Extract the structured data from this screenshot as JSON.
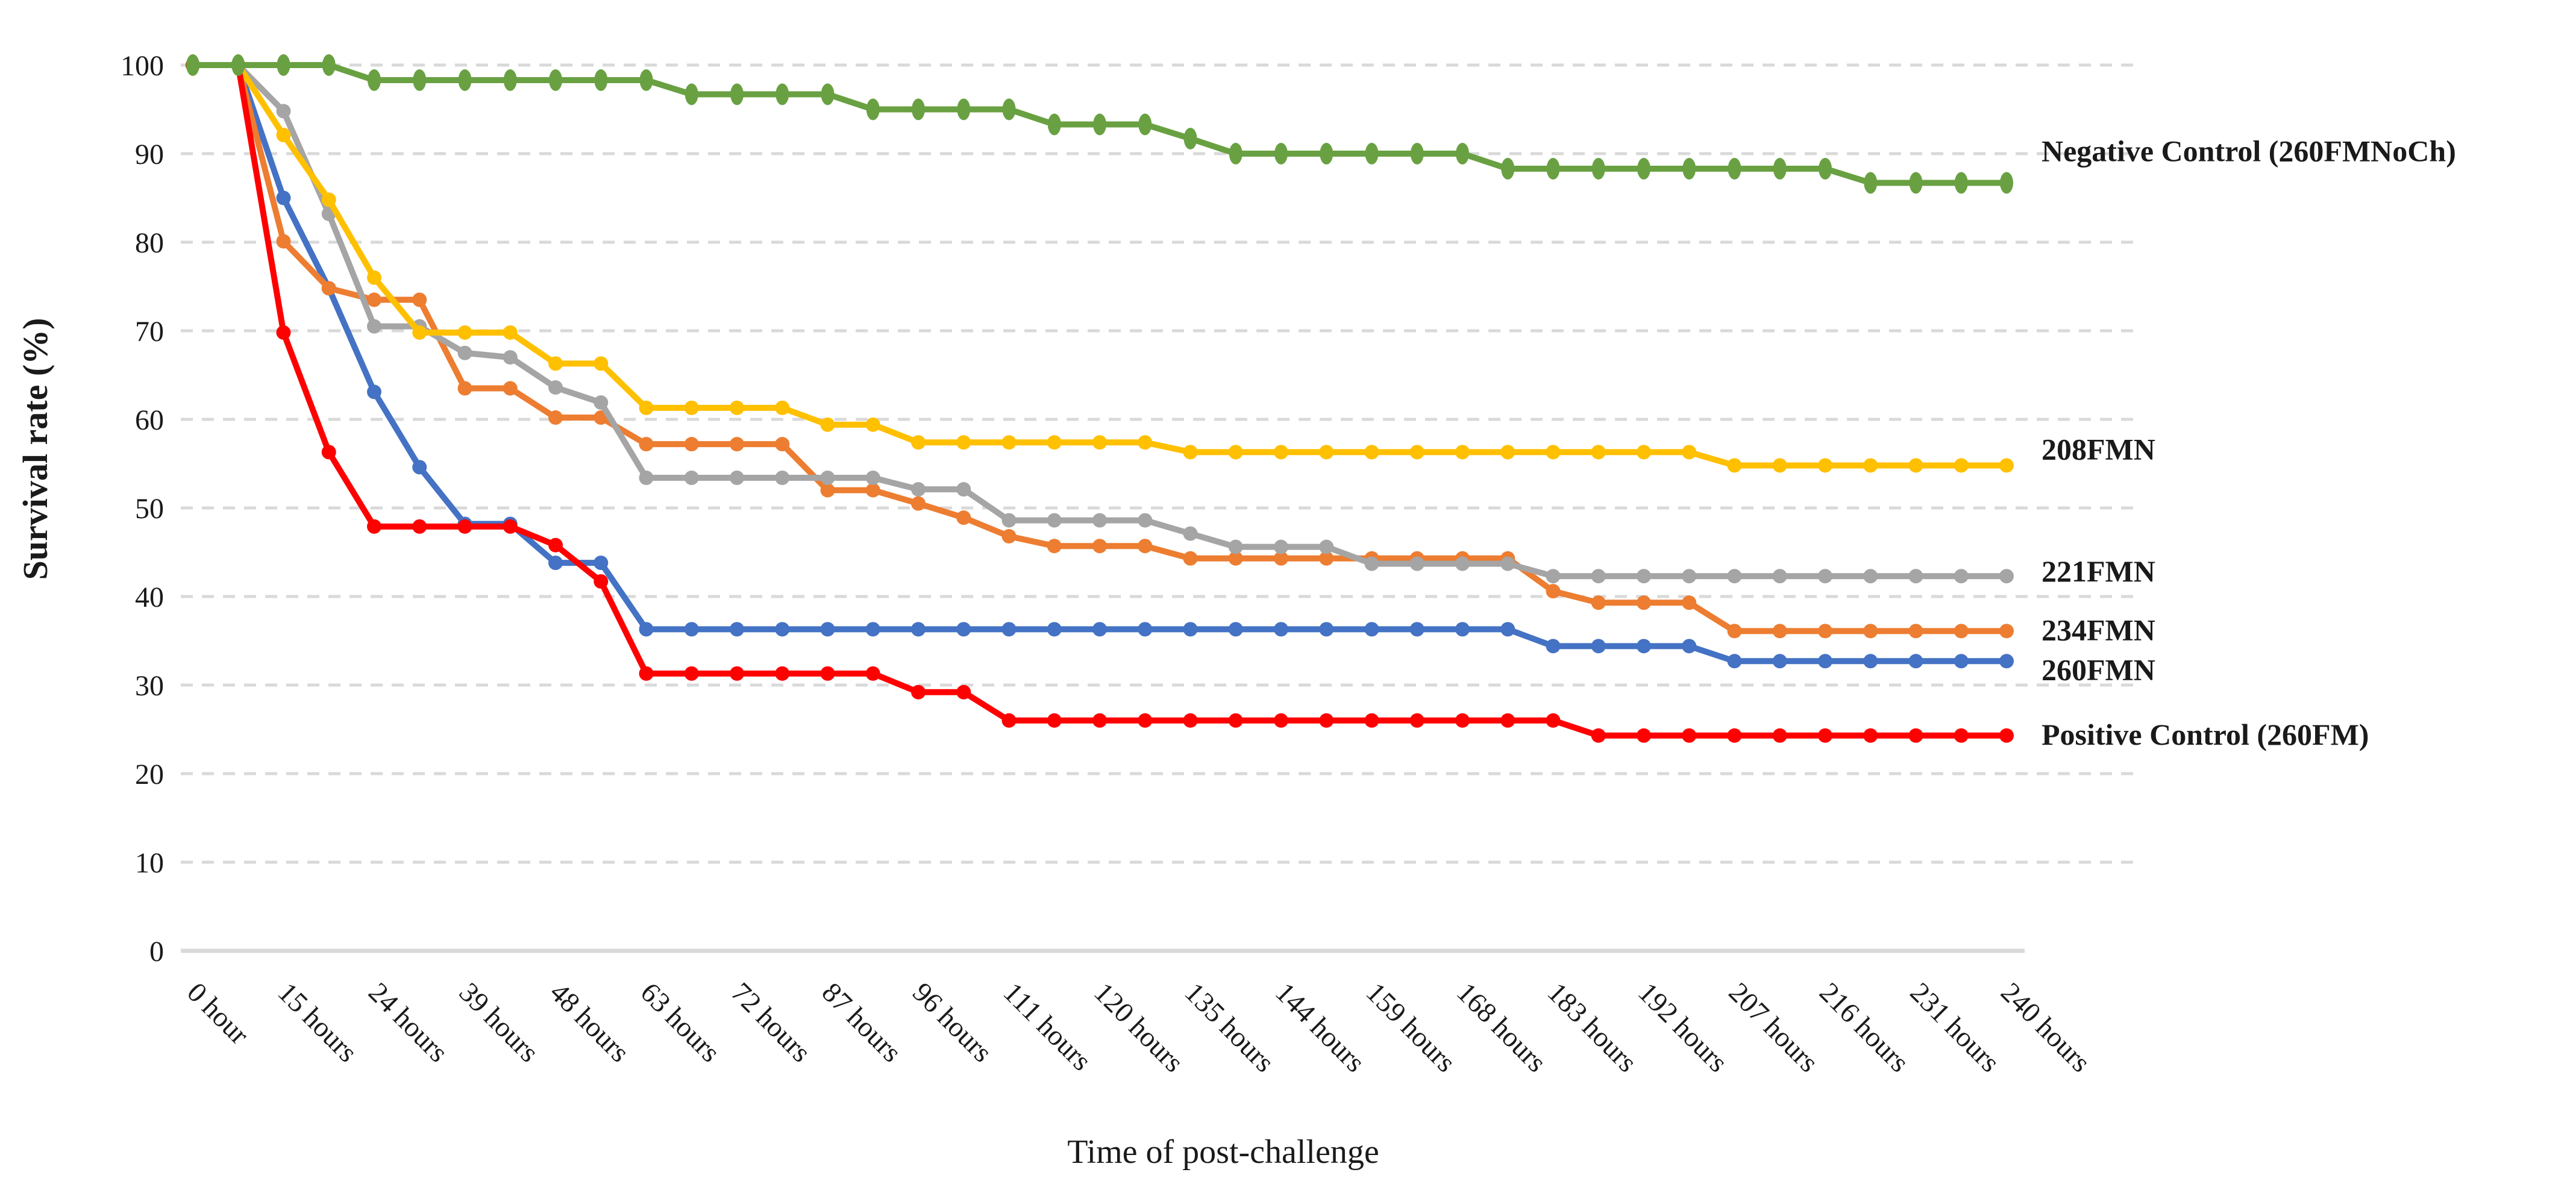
{
  "chart_data": {
    "type": "line",
    "title": "",
    "xlabel": "Time of post-challenge",
    "ylabel": "Survival rate (%)",
    "ylim": [
      0,
      100
    ],
    "y_ticks": [
      0,
      10,
      20,
      30,
      40,
      50,
      60,
      70,
      80,
      90,
      100
    ],
    "grid": "horizontal-dashed",
    "gridline_color": "#d9d9d9",
    "axis_line_color": "#d9d9d9",
    "n_points": 41,
    "x_tick_every": 2,
    "x_tick_labels": [
      "0 hour",
      "15 hours",
      "24 hours",
      "39 hours",
      "48 hours",
      "63 hours",
      "72 hours",
      "87 hours",
      "96 hours",
      "111 hours",
      "120 hours",
      "135 hours",
      "144 hours",
      "159 hours",
      "168 hours",
      "183 hours",
      "192 hours",
      "207 hours",
      "216 hours",
      "231 hours",
      "240 hours"
    ],
    "legend_position": "right-of-plot-at-line-ends",
    "series": [
      {
        "name": "Negative Control (260FMNoCh)",
        "color": "#69a142",
        "marker": "ellipse",
        "values": [
          100,
          100,
          100,
          100,
          98.3,
          98.3,
          98.3,
          98.3,
          98.3,
          98.3,
          98.3,
          96.7,
          96.7,
          96.7,
          96.7,
          95,
          95,
          95,
          95,
          93.3,
          93.3,
          93.3,
          91.7,
          90,
          90,
          90,
          90,
          90,
          90,
          88.3,
          88.3,
          88.3,
          88.3,
          88.3,
          88.3,
          88.3,
          88.3,
          86.7,
          86.7,
          86.7,
          86.7
        ]
      },
      {
        "name": "208FMN",
        "color": "#ffc000",
        "marker": "circle",
        "values": [
          100,
          100,
          92.1,
          84.8,
          76,
          69.8,
          69.8,
          69.8,
          66.3,
          66.3,
          61.3,
          61.3,
          61.3,
          61.3,
          59.4,
          59.4,
          57.4,
          57.4,
          57.4,
          57.4,
          57.4,
          57.4,
          56.3,
          56.3,
          56.3,
          56.3,
          56.3,
          56.3,
          56.3,
          56.3,
          56.3,
          56.3,
          56.3,
          56.3,
          54.8,
          54.8,
          54.8,
          54.8,
          54.8,
          54.8,
          54.8
        ]
      },
      {
        "name": "221FMN",
        "color": "#a5a5a5",
        "marker": "circle",
        "values": [
          100,
          100,
          94.8,
          83.2,
          70.5,
          70.5,
          67.5,
          67,
          63.6,
          61.9,
          53.4,
          53.4,
          53.4,
          53.4,
          53.4,
          53.4,
          52.1,
          52.1,
          48.6,
          48.6,
          48.6,
          48.6,
          47.1,
          45.6,
          45.6,
          45.6,
          43.7,
          43.7,
          43.7,
          43.7,
          42.3,
          42.3,
          42.3,
          42.3,
          42.3,
          42.3,
          42.3,
          42.3,
          42.3,
          42.3,
          42.3
        ]
      },
      {
        "name": "234FMN",
        "color": "#ed7d31",
        "marker": "circle",
        "values": [
          100,
          100,
          80.1,
          74.8,
          73.5,
          73.5,
          63.5,
          63.5,
          60.2,
          60.2,
          57.2,
          57.2,
          57.2,
          57.2,
          52,
          52,
          50.5,
          48.9,
          46.8,
          45.7,
          45.7,
          45.7,
          44.3,
          44.3,
          44.3,
          44.3,
          44.3,
          44.3,
          44.3,
          44.3,
          40.6,
          39.3,
          39.3,
          39.3,
          36.1,
          36.1,
          36.1,
          36.1,
          36.1,
          36.1,
          36.1
        ]
      },
      {
        "name": "260FMN",
        "color": "#4472c4",
        "marker": "circle",
        "values": [
          100,
          100,
          85,
          74.8,
          63.1,
          54.6,
          48.2,
          48.2,
          43.8,
          43.8,
          36.3,
          36.3,
          36.3,
          36.3,
          36.3,
          36.3,
          36.3,
          36.3,
          36.3,
          36.3,
          36.3,
          36.3,
          36.3,
          36.3,
          36.3,
          36.3,
          36.3,
          36.3,
          36.3,
          36.3,
          34.4,
          34.4,
          34.4,
          34.4,
          32.7,
          32.7,
          32.7,
          32.7,
          32.7,
          32.7,
          32.7
        ]
      },
      {
        "name": "Positive Control (260FM)",
        "color": "#ff0000",
        "marker": "circle",
        "values": [
          100,
          100,
          69.8,
          56.3,
          47.9,
          47.9,
          47.9,
          47.9,
          45.8,
          41.7,
          31.3,
          31.3,
          31.3,
          31.3,
          31.3,
          31.3,
          29.2,
          29.2,
          26,
          26,
          26,
          26,
          26,
          26,
          26,
          26,
          26,
          26,
          26,
          26,
          26,
          24.3,
          24.3,
          24.3,
          24.3,
          24.3,
          24.3,
          24.3,
          24.3,
          24.3,
          24.3
        ]
      }
    ]
  }
}
